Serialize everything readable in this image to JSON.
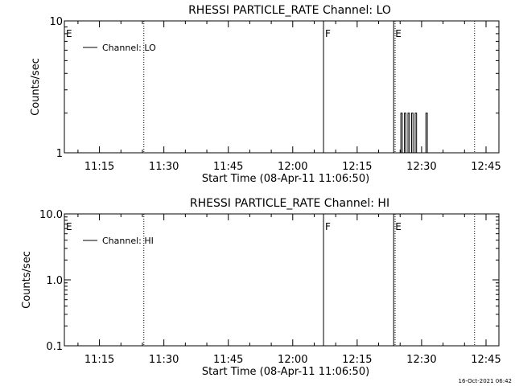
{
  "chart_data": [
    {
      "type": "line",
      "title": "RHESSI PARTICLE_RATE Channel: LO",
      "xlabel": "Start Time (08-Apr-11 11:06:50)",
      "ylabel": "Counts/sec",
      "yscale": "log",
      "xlim": [
        "11:06:50",
        "12:48:00"
      ],
      "ylim": [
        1,
        10
      ],
      "x_ticks": [
        "11:15",
        "11:30",
        "11:45",
        "12:00",
        "12:15",
        "12:30",
        "12:45"
      ],
      "y_ticks": [
        "1",
        "10"
      ],
      "legend": "top-left",
      "series": [
        {
          "name": "Channel: LO",
          "x": [
            "12:24:40",
            "12:25:10",
            "12:25:30",
            "12:26:00",
            "12:26:20",
            "12:26:50",
            "12:27:10",
            "12:27:40",
            "12:28:00",
            "12:28:30",
            "12:28:50",
            "12:29:20",
            "12:30:30",
            "12:31:00",
            "12:31:20"
          ],
          "values": [
            1,
            2,
            1,
            2,
            1,
            2,
            1,
            2,
            1,
            2,
            1,
            1,
            1,
            2,
            1
          ]
        }
      ],
      "annotations": [
        {
          "label": "E",
          "time": "11:06:50",
          "style": "dotted"
        },
        {
          "label": "",
          "time": "11:25:20",
          "style": "dotted"
        },
        {
          "label": "F",
          "time": "12:07:10",
          "style": "solid"
        },
        {
          "label": "E",
          "time": "12:23:30",
          "style": "solid"
        },
        {
          "label": "",
          "time": "12:23:50",
          "style": "dotted"
        },
        {
          "label": "",
          "time": "12:42:20",
          "style": "dotted"
        }
      ]
    },
    {
      "type": "line",
      "title": "RHESSI PARTICLE_RATE Channel: HI",
      "xlabel": "Start Time (08-Apr-11 11:06:50)",
      "ylabel": "Counts/sec",
      "yscale": "log",
      "xlim": [
        "11:06:50",
        "12:48:00"
      ],
      "ylim": [
        0.1,
        10
      ],
      "x_ticks": [
        "11:15",
        "11:30",
        "11:45",
        "12:00",
        "12:15",
        "12:30",
        "12:45"
      ],
      "y_ticks": [
        "0.1",
        "1.0",
        "10.0"
      ],
      "legend": "top-left",
      "series": [
        {
          "name": "Channel: HI",
          "x": [],
          "values": []
        }
      ],
      "annotations": [
        {
          "label": "E",
          "time": "11:06:50",
          "style": "dotted"
        },
        {
          "label": "",
          "time": "11:25:20",
          "style": "dotted"
        },
        {
          "label": "F",
          "time": "12:07:10",
          "style": "solid"
        },
        {
          "label": "E",
          "time": "12:23:30",
          "style": "solid"
        },
        {
          "label": "",
          "time": "12:23:50",
          "style": "dotted"
        },
        {
          "label": "",
          "time": "12:42:20",
          "style": "dotted"
        }
      ]
    }
  ],
  "footer": {
    "timestamp": "16-Oct-2021 06:42"
  }
}
